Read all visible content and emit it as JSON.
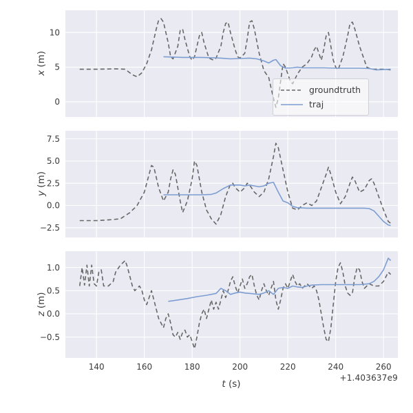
{
  "figure": {
    "xlabel_var": "t",
    "xlabel_unit": " (s)",
    "x_offset_text": "+1.403637e9",
    "xlim": [
      127,
      266
    ],
    "x_ticks": [
      140,
      160,
      180,
      200,
      220,
      240,
      260
    ],
    "x_tick_labels": [
      "140",
      "160",
      "180",
      "200",
      "220",
      "240",
      "260"
    ],
    "axes_background": "#eaeaf2",
    "grid_color": "#ffffff",
    "tick_color": "#3b3b3b",
    "grid": true
  },
  "legend": {
    "position": "center-right of first subplot",
    "entries": [
      {
        "label": "groundtruth",
        "color": "#666666",
        "style": "dashed"
      },
      {
        "label": "traj",
        "color": "#7b9dd2",
        "style": "solid"
      }
    ]
  },
  "chart_data": [
    {
      "type": "line",
      "ylabel_var": "x",
      "ylabel_unit": " (m)",
      "ylim": [
        -2.2,
        13.2
      ],
      "yticks": [
        0,
        5,
        10
      ],
      "ytick_labels": [
        "0",
        "5",
        "10"
      ],
      "series": [
        {
          "name": "groundtruth",
          "color": "#666666",
          "dashed": true,
          "x": [
            133,
            140,
            148,
            152,
            155,
            157,
            159,
            161,
            163,
            165,
            166,
            167,
            168,
            170,
            171,
            172,
            174,
            175,
            176,
            177,
            179,
            180,
            181,
            183,
            184,
            185,
            187,
            189,
            190,
            192,
            193,
            194,
            195,
            196,
            198,
            199,
            200,
            202,
            203,
            204,
            205,
            206,
            208,
            210,
            212,
            213,
            214,
            215,
            216,
            217,
            218,
            219,
            220,
            221,
            222,
            224,
            226,
            228,
            230,
            231,
            232,
            233,
            234,
            235,
            236,
            237,
            238,
            239,
            240,
            241,
            243,
            245,
            246,
            247,
            248,
            250,
            252,
            253,
            255,
            258,
            261,
            263
          ],
          "y": [
            4.7,
            4.7,
            4.75,
            4.7,
            3.9,
            3.6,
            4.2,
            5.5,
            7.5,
            10.5,
            11.8,
            12.0,
            11.5,
            8.5,
            6.5,
            6.2,
            8.0,
            10.3,
            10.5,
            9.0,
            6.5,
            6.0,
            6.5,
            9.5,
            10.0,
            8.5,
            6.3,
            6.0,
            6.3,
            8.0,
            10.0,
            11.3,
            11.5,
            10.0,
            7.5,
            6.5,
            6.3,
            7.0,
            9.0,
            11.5,
            11.7,
            10.5,
            7.0,
            4.5,
            3.5,
            2.0,
            0.5,
            -0.8,
            0.5,
            3.0,
            5.5,
            5.0,
            4.0,
            3.0,
            2.6,
            4.0,
            5.0,
            5.5,
            6.5,
            7.5,
            8.0,
            7.0,
            6.0,
            7.5,
            9.5,
            10.0,
            8.0,
            6.0,
            5.0,
            4.6,
            6.5,
            9.5,
            11.3,
            11.5,
            10.5,
            8.0,
            6.0,
            5.0,
            4.7,
            4.7,
            4.7,
            4.6
          ]
        },
        {
          "name": "traj",
          "color": "#7b9dd2",
          "dashed": false,
          "x": [
            168,
            172,
            176,
            180,
            184,
            188,
            192,
            196,
            200,
            204,
            207,
            210,
            212,
            214,
            215,
            217,
            219,
            222,
            224,
            226,
            230,
            235,
            240,
            245,
            250,
            254,
            257,
            260,
            263
          ],
          "y": [
            6.5,
            6.45,
            6.4,
            6.4,
            6.4,
            6.35,
            6.3,
            6.2,
            6.25,
            6.3,
            6.2,
            5.9,
            5.6,
            6.0,
            6.1,
            5.2,
            4.85,
            4.9,
            5.0,
            4.9,
            4.9,
            4.9,
            4.85,
            4.85,
            4.85,
            4.8,
            4.6,
            4.65,
            4.7
          ]
        }
      ]
    },
    {
      "type": "line",
      "ylabel_var": "y",
      "ylabel_unit": " (m)",
      "ylim": [
        -3.6,
        8.4
      ],
      "yticks": [
        -2.5,
        0.0,
        2.5,
        5.0,
        7.5
      ],
      "ytick_labels": [
        "−2.5",
        "0.0",
        "2.5",
        "5.0",
        "7.5"
      ],
      "series": [
        {
          "name": "groundtruth",
          "color": "#666666",
          "dashed": true,
          "x": [
            133,
            140,
            146,
            150,
            154,
            157,
            160,
            162,
            163,
            164,
            166,
            168,
            170,
            171,
            172,
            173,
            175,
            176,
            178,
            180,
            181,
            182,
            184,
            186,
            188,
            190,
            192,
            194,
            196,
            197,
            198,
            200,
            202,
            203,
            204,
            206,
            208,
            210,
            212,
            214,
            215,
            216,
            218,
            220,
            222,
            224,
            226,
            228,
            230,
            232,
            234,
            236,
            237,
            238,
            240,
            242,
            244,
            246,
            247,
            248,
            250,
            252,
            254,
            255,
            256,
            258,
            260,
            262,
            263
          ],
          "y": [
            -1.7,
            -1.7,
            -1.6,
            -1.5,
            -0.8,
            0.0,
            1.5,
            3.5,
            4.5,
            4.3,
            2.0,
            0.5,
            1.5,
            3.0,
            4.0,
            3.5,
            0.5,
            -0.8,
            0.5,
            3.0,
            5.0,
            4.5,
            1.5,
            -0.5,
            -1.5,
            -2.1,
            -1.0,
            1.0,
            2.4,
            2.5,
            2.0,
            1.5,
            2.0,
            2.5,
            2.3,
            1.5,
            1.0,
            1.5,
            3.0,
            5.5,
            7.0,
            6.5,
            4.0,
            1.5,
            -0.3,
            -0.5,
            0.0,
            0.3,
            0.0,
            0.5,
            2.0,
            3.5,
            4.3,
            3.5,
            1.5,
            0.2,
            1.0,
            2.5,
            3.2,
            2.8,
            1.5,
            1.8,
            2.8,
            3.0,
            2.5,
            1.0,
            -0.5,
            -1.8,
            -2.0
          ]
        },
        {
          "name": "traj",
          "color": "#7b9dd2",
          "dashed": false,
          "x": [
            168,
            172,
            176,
            180,
            184,
            188,
            190,
            193,
            196,
            200,
            202,
            204,
            206,
            208,
            210,
            212,
            214,
            216,
            218,
            220,
            222,
            224,
            228,
            232,
            236,
            240,
            244,
            248,
            252,
            254,
            256,
            258,
            260,
            262,
            263
          ],
          "y": [
            1.2,
            1.2,
            1.2,
            1.2,
            1.2,
            1.25,
            1.4,
            1.9,
            2.3,
            2.3,
            2.2,
            2.3,
            2.2,
            2.1,
            2.2,
            2.5,
            2.6,
            1.5,
            0.5,
            0.3,
            -0.1,
            -0.25,
            -0.3,
            -0.3,
            -0.3,
            -0.3,
            -0.3,
            -0.3,
            -0.3,
            -0.35,
            -0.6,
            -1.2,
            -1.8,
            -2.2,
            -2.25
          ]
        }
      ]
    },
    {
      "type": "line",
      "ylabel_var": "z",
      "ylabel_unit": " (m)",
      "ylim": [
        -0.95,
        1.35
      ],
      "yticks": [
        -0.5,
        0.0,
        0.5,
        1.0
      ],
      "ytick_labels": [
        "−0.5",
        "0.0",
        "0.5",
        "1.0"
      ],
      "series": [
        {
          "name": "groundtruth",
          "color": "#666666",
          "dashed": true,
          "x": [
            133,
            134,
            135,
            136,
            137,
            138,
            139,
            140,
            141,
            142,
            143,
            145,
            147,
            148,
            150,
            151,
            152,
            153,
            154,
            155,
            156,
            157,
            158,
            159,
            160,
            161,
            162,
            163,
            164,
            165,
            166,
            167,
            168,
            169,
            170,
            171,
            172,
            173,
            174,
            175,
            176,
            177,
            178,
            179,
            180,
            181,
            182,
            183,
            184,
            185,
            186,
            187,
            188,
            189,
            190,
            191,
            192,
            193,
            194,
            195,
            196,
            197,
            198,
            199,
            200,
            201,
            202,
            203,
            204,
            205,
            206,
            207,
            208,
            209,
            210,
            211,
            212,
            213,
            214,
            215,
            216,
            217,
            218,
            219,
            220,
            221,
            222,
            223,
            224,
            225,
            226,
            228,
            230,
            231,
            232,
            233,
            234,
            235,
            236,
            237,
            238,
            239,
            240,
            241,
            242,
            243,
            244,
            245,
            246,
            247,
            248,
            249,
            250,
            251,
            252,
            253,
            254,
            256,
            258,
            260,
            261,
            262,
            263
          ],
          "y": [
            0.6,
            1.0,
            0.62,
            1.05,
            0.6,
            1.05,
            0.65,
            0.6,
            0.9,
            0.95,
            0.6,
            0.6,
            0.7,
            0.9,
            1.05,
            1.1,
            1.15,
            1.0,
            0.8,
            0.6,
            0.5,
            0.55,
            0.6,
            0.5,
            0.3,
            0.2,
            0.35,
            0.5,
            0.3,
            0.1,
            -0.1,
            -0.2,
            -0.3,
            -0.1,
            0.0,
            -0.2,
            -0.45,
            -0.5,
            -0.4,
            -0.55,
            -0.4,
            -0.35,
            -0.5,
            -0.45,
            -0.6,
            -0.75,
            -0.5,
            -0.2,
            0.0,
            0.1,
            -0.1,
            0.1,
            0.3,
            0.1,
            0.25,
            0.1,
            0.3,
            0.5,
            0.35,
            0.5,
            0.7,
            0.8,
            0.6,
            0.45,
            0.6,
            0.75,
            0.55,
            0.65,
            0.8,
            0.85,
            0.6,
            0.4,
            0.3,
            0.5,
            0.65,
            0.5,
            0.4,
            0.55,
            0.7,
            0.3,
            0.1,
            0.3,
            0.55,
            0.65,
            0.55,
            0.7,
            0.85,
            0.7,
            0.6,
            0.65,
            0.55,
            0.65,
            0.55,
            0.6,
            0.5,
            0.3,
            0.0,
            -0.3,
            -0.55,
            -0.6,
            -0.3,
            0.2,
            0.7,
            1.0,
            1.1,
            0.9,
            0.6,
            0.45,
            0.4,
            0.45,
            0.8,
            1.0,
            0.95,
            0.7,
            0.55,
            0.6,
            0.65,
            0.6,
            0.6,
            0.7,
            0.8,
            0.9,
            0.85
          ]
        },
        {
          "name": "traj",
          "color": "#7b9dd2",
          "dashed": false,
          "x": [
            170,
            174,
            178,
            182,
            186,
            190,
            192,
            194,
            196,
            198,
            200,
            202,
            204,
            206,
            208,
            210,
            212,
            214,
            216,
            218,
            220,
            222,
            224,
            226,
            228,
            230,
            234,
            238,
            242,
            246,
            250,
            254,
            256,
            258,
            260,
            262,
            263
          ],
          "y": [
            0.27,
            0.3,
            0.33,
            0.37,
            0.4,
            0.44,
            0.55,
            0.5,
            0.42,
            0.45,
            0.47,
            0.45,
            0.44,
            0.43,
            0.42,
            0.45,
            0.5,
            0.42,
            0.55,
            0.57,
            0.55,
            0.6,
            0.58,
            0.57,
            0.6,
            0.62,
            0.63,
            0.63,
            0.63,
            0.63,
            0.63,
            0.65,
            0.7,
            0.8,
            0.95,
            1.2,
            1.15
          ]
        }
      ]
    }
  ]
}
